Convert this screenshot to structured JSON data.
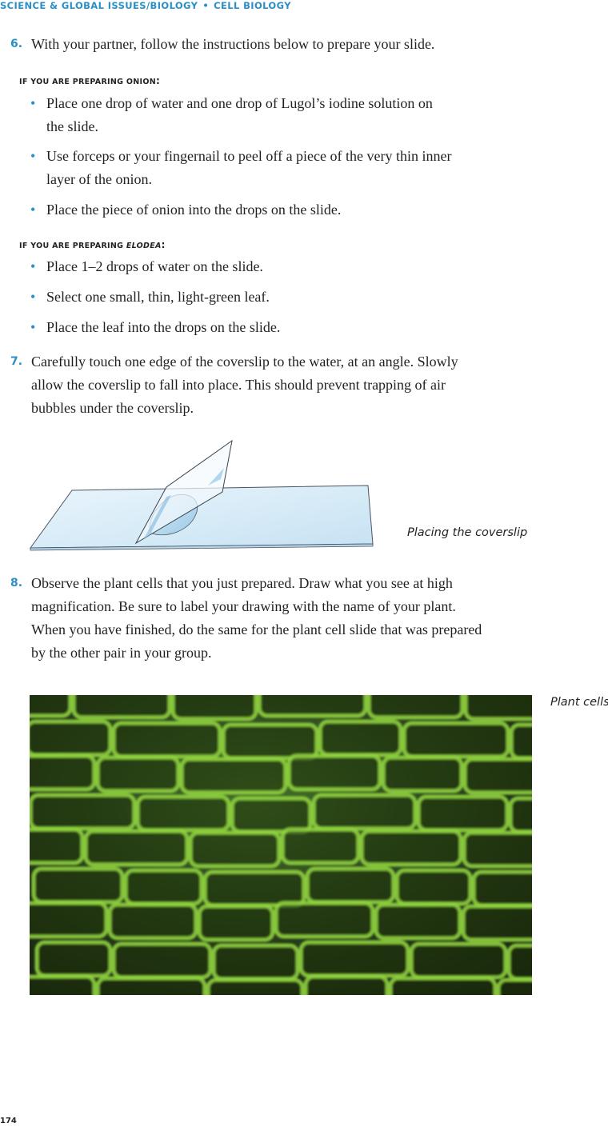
{
  "header": {
    "section": "SCIENCE & GLOBAL ISSUES/BIOLOGY",
    "separator": "•",
    "unit": "CELL BIOLOGY"
  },
  "steps": [
    {
      "num": "6.",
      "text": "With your partner, follow the instructions below to prepare your slide."
    },
    {
      "num": "7.",
      "line1": "Carefully touch one edge of the coverslip to the water, at an angle. Slowly",
      "line2": "allow the coverslip to fall into place. This should prevent trapping of air",
      "line3": "bubbles under the coverslip."
    },
    {
      "num": "8.",
      "line1": "Observe the plant cells that you just prepared. Draw what you see at high",
      "line2": "magnification. Be sure to label your drawing with the name of your plant.",
      "line3": "When you have finished, do the same for the plant cell slide that was prepared",
      "line4": "by the other pair in your group."
    }
  ],
  "onion": {
    "heading_if": "IF YOU ARE PREPARING ",
    "heading_word": "ONION",
    "heading_colon": ":",
    "bullets": [
      {
        "line1": "Place one drop of water and one drop of Lugol’s iodine solution on",
        "line2": "the slide."
      },
      {
        "line1": "Use forceps or your fingernail to peel off a piece of the very thin inner",
        "line2": "layer of the onion."
      },
      {
        "line1": "Place the piece of onion into the drops on the slide."
      }
    ]
  },
  "elodea": {
    "heading_if": "IF YOU ARE PREPARING ",
    "heading_word": "ELODEA",
    "heading_colon": ":",
    "bullets": [
      {
        "line1": "Place 1–2 drops of water on the slide."
      },
      {
        "line1": "Select one small, thin, light-green leaf."
      },
      {
        "line1": "Place the leaf into the drops on the slide."
      }
    ]
  },
  "bullet_char": "•",
  "figures": {
    "coverslip_caption": "Placing the coverslip",
    "cells_caption": "Plant cells"
  },
  "page_number": "174",
  "colors": {
    "accent": "#2a8fc7",
    "text": "#231f20",
    "cell_green": "#8fd63a"
  }
}
